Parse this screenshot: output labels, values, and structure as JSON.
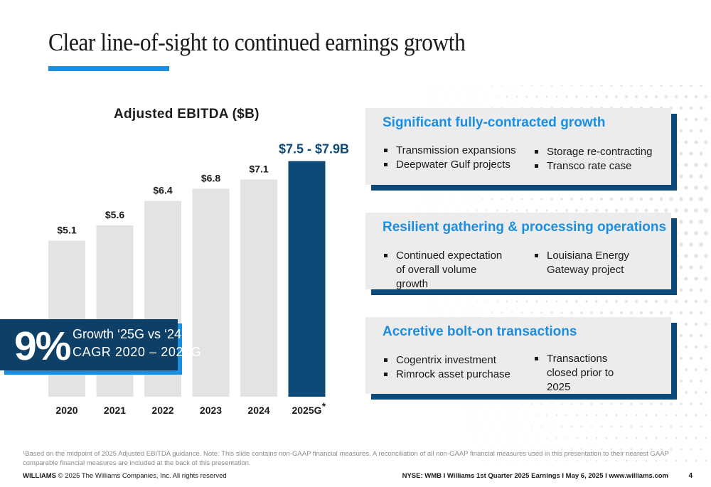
{
  "slide": {
    "title": "Clear line-of-sight to continued earnings growth",
    "page_number": "4"
  },
  "chart_data": {
    "type": "bar",
    "title": "Adjusted EBITDA ($B)",
    "categories": [
      "2020",
      "2021",
      "2022",
      "2023",
      "2024",
      "2025G"
    ],
    "category_labels": [
      "2020",
      "2021",
      "2022",
      "2023",
      "2024",
      "2025G"
    ],
    "category_footnote_marks": [
      "",
      "",
      "",
      "",
      "",
      "*"
    ],
    "values": [
      5.1,
      5.6,
      6.4,
      6.8,
      7.1,
      7.7
    ],
    "value_labels": [
      "$5.1",
      "$5.6",
      "$6.4",
      "$6.8",
      "$7.1",
      "$7.5 - $7.9B"
    ],
    "highlight_index": 5,
    "colors": {
      "bar": "#e3e3e3",
      "highlight": "#0e4a79",
      "label": "#1a1a1a",
      "highlight_label": "#0e4a79"
    },
    "ylim": [
      0,
      7.9
    ],
    "xlabel": "",
    "ylabel": "",
    "grid": false,
    "legend": "none"
  },
  "highlight": {
    "percent": "9%",
    "line1": "Growth ‘25G vs ‘24",
    "line2": "CAGR 2020 – 2025G"
  },
  "cards": [
    {
      "title": "Significant fully-contracted growth",
      "col1": [
        "Transmission expansions",
        "Deepwater Gulf projects"
      ],
      "col2": [
        "Storage re-contracting",
        "Transco rate case"
      ]
    },
    {
      "title": "Resilient gathering & processing operations",
      "col1": [
        "Continued expectation of overall volume growth"
      ],
      "col2": [
        "Louisiana Energy Gateway project"
      ]
    },
    {
      "title": "Accretive bolt-on transactions",
      "col1": [
        "Cogentrix investment",
        "Rimrock asset purchase"
      ],
      "col2": [
        "Transactions closed prior to 2025"
      ]
    }
  ],
  "footnote": "¹Based on the midpoint of 2025 Adjusted EBITDA guidance. Note: This slide contains non-GAAP financial measures. A reconciliation of all non-GAAP financial measures used in this presentation to their nearest GAAP comparable financial measures are included at the back of this presentation.",
  "footer": {
    "brand": "WILLIAMS",
    "copyright": "© 2025 The Williams Companies, Inc. All rights reserved",
    "right": "NYSE: WMB I Williams 1st Quarter 2025 Earnings I May 6, 2025 I www.williams.com"
  },
  "colors": {
    "accent": "#1b8ee0",
    "navy": "#0e3f66",
    "card_bg": "#ececec"
  }
}
